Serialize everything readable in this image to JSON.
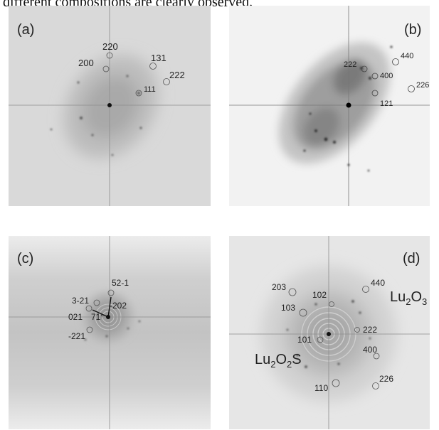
{
  "caption_fragment": "different compositions are clearly observed.",
  "panels": [
    {
      "id": "a",
      "label": "(a)",
      "spots": [
        {
          "text": "220"
        },
        {
          "text": "200"
        },
        {
          "text": "131"
        },
        {
          "text": "222"
        },
        {
          "text": "111"
        }
      ]
    },
    {
      "id": "b",
      "label": "(b)",
      "spots": [
        {
          "text": "222"
        },
        {
          "text": "440"
        },
        {
          "text": "400"
        },
        {
          "text": "226"
        },
        {
          "text": "121"
        }
      ]
    },
    {
      "id": "c",
      "label": "(c)",
      "angle": "71°",
      "spots": [
        {
          "text": "52-1"
        },
        {
          "text": "3-21"
        },
        {
          "text": "-202"
        },
        {
          "text": "021"
        },
        {
          "text": "-221"
        }
      ]
    },
    {
      "id": "d",
      "label": "(d)",
      "phase_lu2o3": {
        "base": "Lu",
        "sub1": "2",
        "mid": "O",
        "sub2": "3"
      },
      "phase_lu2o2s": {
        "base": "Lu",
        "sub1": "2",
        "mid": "O",
        "sub2": "2",
        "tail": "S"
      },
      "spots": [
        {
          "text": "203"
        },
        {
          "text": "102"
        },
        {
          "text": "440"
        },
        {
          "text": "103"
        },
        {
          "text": "222"
        },
        {
          "text": "101"
        },
        {
          "text": "400"
        },
        {
          "text": "226"
        },
        {
          "text": "110"
        }
      ]
    }
  ]
}
